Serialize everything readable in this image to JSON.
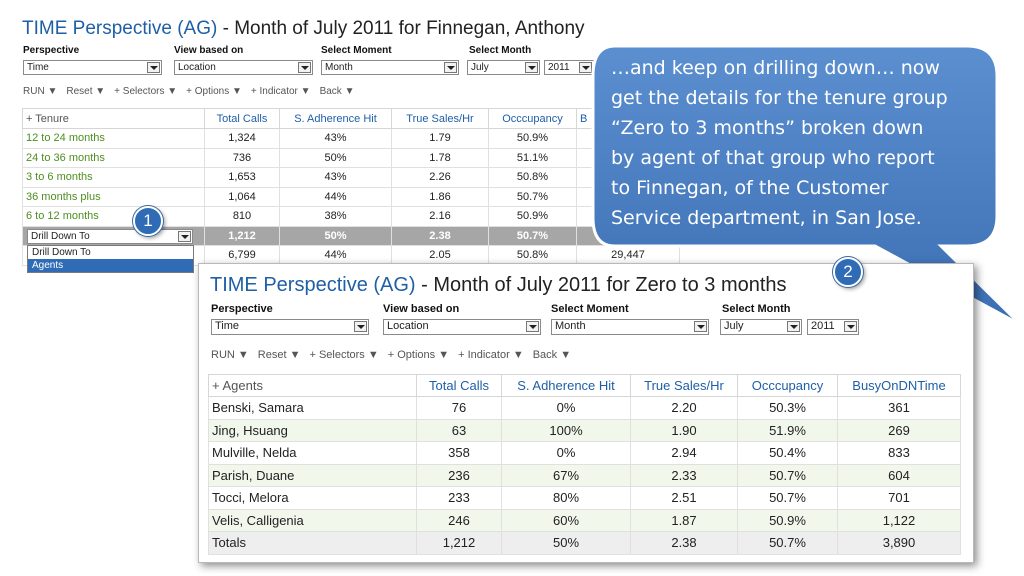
{
  "top": {
    "title_prefix": "TIME Perspective (AG)",
    "title_suffix": " - Month of July 2011 for Finnegan, Anthony",
    "labels": {
      "perspective": "Perspective",
      "view": "View based on",
      "moment": "Select Moment",
      "month": "Select Month"
    },
    "values": {
      "perspective": "Time",
      "view": "Location",
      "moment": "Month",
      "month": "July",
      "year": "2011"
    },
    "toolbar": [
      "RUN ▼",
      "Reset ▼",
      "+ Selectors ▼",
      "+ Options ▼",
      "+ Indicator ▼",
      "Back ▼"
    ],
    "table": {
      "headers": [
        "+ Tenure",
        "Total Calls",
        "S. Adherence Hit",
        "True Sales/Hr",
        "Occcupancy",
        "B"
      ],
      "rows": [
        [
          "12 to 24 months",
          "1,324",
          "43%",
          "1.79",
          "50.9%"
        ],
        [
          "24 to 36 months",
          "736",
          "50%",
          "1.78",
          "51.1%"
        ],
        [
          "3 to 6 months",
          "1,653",
          "43%",
          "2.26",
          "50.8%"
        ],
        [
          "36 months plus",
          "1,064",
          "44%",
          "1.86",
          "50.7%"
        ],
        [
          "6 to 12 months",
          "810",
          "38%",
          "2.16",
          "50.9%"
        ]
      ],
      "highlight_row": [
        "1,212",
        "50%",
        "2.38",
        "50.7%"
      ],
      "total_row": [
        "6,799",
        "44%",
        "2.05",
        "50.8%",
        "29,447"
      ]
    },
    "dropdown": {
      "value": "Drill Down To",
      "options": [
        "Drill Down To",
        "Agents"
      ]
    }
  },
  "badges": {
    "one": "1",
    "two": "2"
  },
  "callout": {
    "lines": [
      "…and keep on drilling down… now",
      "get the details for the tenure group",
      "“Zero to 3 months” broken down",
      "by agent of that group who report",
      "to Finnegan, of the Customer",
      "Service department, in San Jose."
    ]
  },
  "panel": {
    "title_prefix": "TIME Perspective (AG)",
    "title_suffix": " - Month of July 2011 for Zero to 3 months",
    "labels": {
      "perspective": "Perspective",
      "view": "View based on",
      "moment": "Select Moment",
      "month": "Select Month"
    },
    "values": {
      "perspective": "Time",
      "view": "Location",
      "moment": "Month",
      "month": "July",
      "year": "2011"
    },
    "toolbar": [
      "RUN ▼",
      "Reset ▼",
      "+ Selectors ▼",
      "+ Options ▼",
      "+ Indicator ▼",
      "Back ▼"
    ],
    "table": {
      "headers": [
        "+ Agents",
        "Total Calls",
        "S. Adherence Hit",
        "True Sales/Hr",
        "Occcupancy",
        "BusyOnDNTime"
      ],
      "rows": [
        [
          "Benski, Samara",
          "76",
          "0%",
          "2.20",
          "50.3%",
          "361"
        ],
        [
          "Jing, Hsuang",
          "63",
          "100%",
          "1.90",
          "51.9%",
          "269"
        ],
        [
          "Mulville, Nelda",
          "358",
          "0%",
          "2.94",
          "50.4%",
          "833"
        ],
        [
          "Parish, Duane",
          "236",
          "67%",
          "2.33",
          "50.7%",
          "604"
        ],
        [
          "Tocci, Melora",
          "233",
          "80%",
          "2.51",
          "50.7%",
          "701"
        ],
        [
          "Velis, Calligenia",
          "246",
          "60%",
          "1.87",
          "50.9%",
          "1,122"
        ]
      ],
      "totals": [
        "Totals",
        "1,212",
        "50%",
        "2.38",
        "50.7%",
        "3,890"
      ]
    }
  }
}
